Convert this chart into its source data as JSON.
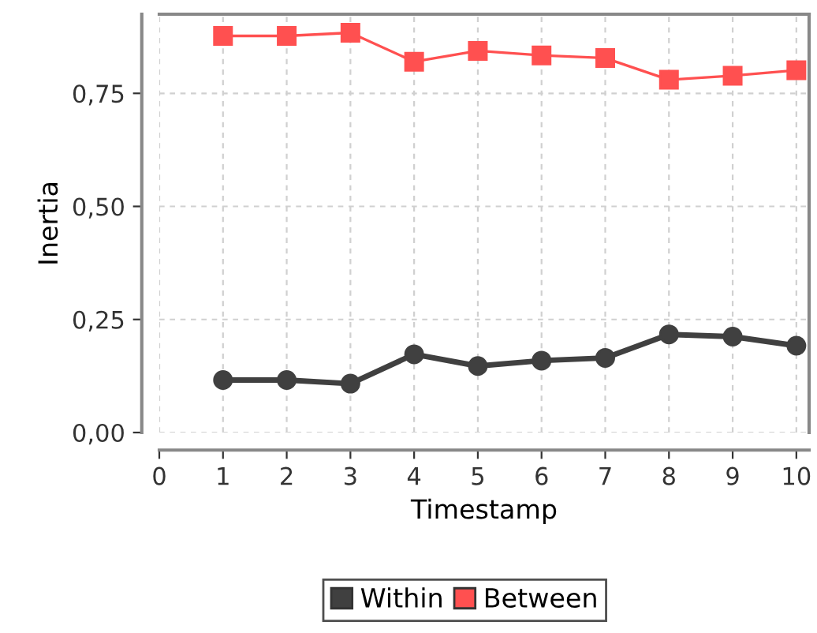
{
  "chart_data": {
    "type": "line",
    "xlabel": "Timestamp",
    "ylabel": "Inertia",
    "x": [
      1,
      2,
      3,
      4,
      5,
      6,
      7,
      8,
      9,
      10
    ],
    "series": [
      {
        "name": "Within",
        "color": "#404040",
        "marker": "circle",
        "values": [
          0.116,
          0.116,
          0.108,
          0.173,
          0.147,
          0.159,
          0.165,
          0.217,
          0.212,
          0.192
        ]
      },
      {
        "name": "Between",
        "color": "#ff5050",
        "marker": "square",
        "values": [
          0.877,
          0.877,
          0.884,
          0.82,
          0.844,
          0.834,
          0.828,
          0.78,
          0.789,
          0.801
        ]
      }
    ],
    "xlim": [
      0,
      10.2
    ],
    "xticks": [
      0,
      1,
      2,
      3,
      4,
      5,
      6,
      7,
      8,
      9,
      10
    ],
    "ylim": [
      0,
      0.925
    ],
    "yticks": [
      {
        "value": 0,
        "label": "0,00"
      },
      {
        "value": 0.25,
        "label": "0,25"
      },
      {
        "value": 0.5,
        "label": "0,50"
      },
      {
        "value": 0.75,
        "label": "0,75"
      }
    ],
    "grid": true,
    "legend": "bottom",
    "line_style": "solid"
  }
}
